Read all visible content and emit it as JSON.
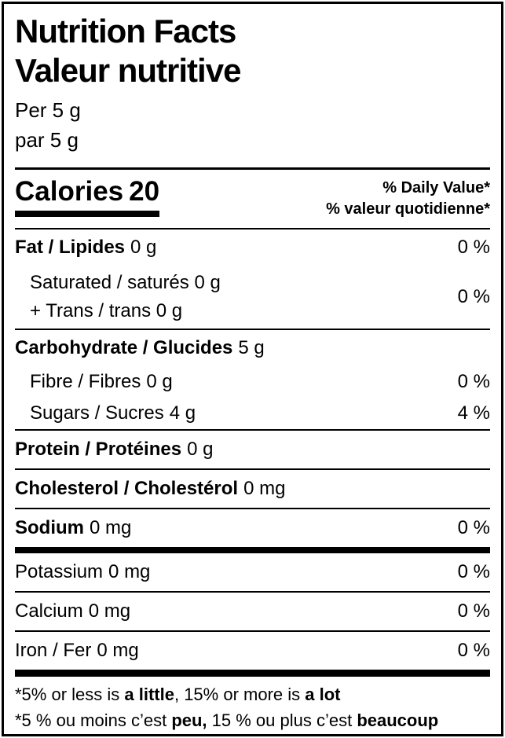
{
  "label": {
    "title_en": "Nutrition Facts",
    "title_fr": "Valeur nutritive",
    "serving_en": "Per 5 g",
    "serving_fr": "par 5 g",
    "calories": {
      "label": "Calories",
      "value": "20"
    },
    "daily_value_header": {
      "en": "% Daily Value*",
      "fr": "% valeur quotidienne*"
    },
    "nutrients": {
      "fat": {
        "name": "Fat / Lipides",
        "amount": "0 g",
        "pct": "0 %"
      },
      "sat_trans": {
        "line1": "Saturated / saturés 0 g",
        "line2": "+ Trans / trans 0 g",
        "pct": "0 %"
      },
      "carbohydrate": {
        "name": "Carbohydrate / Glucides",
        "amount": "5 g"
      },
      "fibre": {
        "name": "Fibre / Fibres",
        "amount": "0 g",
        "pct": "0 %"
      },
      "sugars": {
        "name": "Sugars / Sucres",
        "amount": "4 g",
        "pct": "4 %"
      },
      "protein": {
        "name": "Protein / Protéines",
        "amount": "0 g"
      },
      "cholesterol": {
        "name": "Cholesterol / Cholestérol",
        "amount": "0 mg"
      },
      "sodium": {
        "name": "Sodium",
        "amount": "0 mg",
        "pct": "0 %"
      },
      "potassium": {
        "name": "Potassium",
        "amount": "0 mg",
        "pct": "0 %"
      },
      "calcium": {
        "name": "Calcium",
        "amount": "0 mg",
        "pct": "0 %"
      },
      "iron": {
        "name": "Iron / Fer",
        "amount": "0 mg",
        "pct": "0 %"
      }
    },
    "footnote_en": {
      "t1": "*5% or less is ",
      "b1": "a little",
      "t2": ", 15% or more is ",
      "b2": "a lot"
    },
    "footnote_fr": {
      "t1": "*5 % ou moins c’est ",
      "b1": "peu,",
      "t2": " 15 % ou plus c’est ",
      "b2": "beaucoup"
    },
    "colors": {
      "ink": "#000000",
      "background": "#ffffff"
    }
  }
}
